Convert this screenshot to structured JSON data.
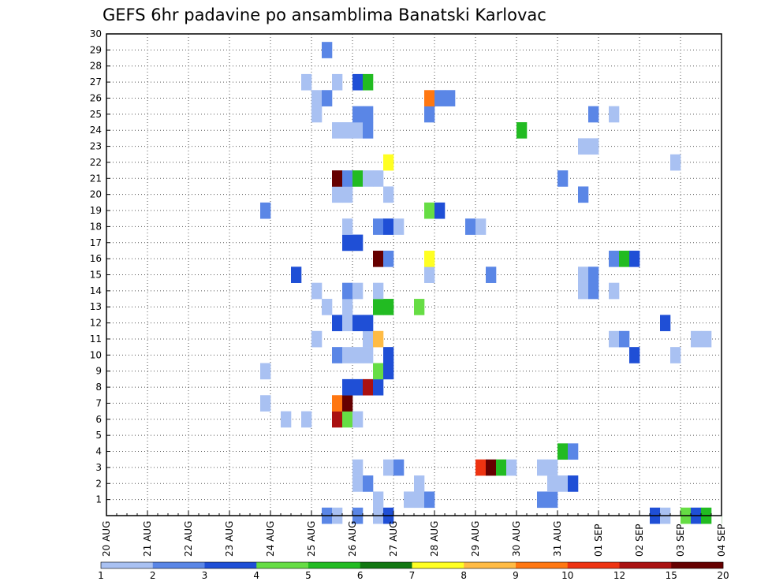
{
  "chart_data": {
    "type": "heatmap",
    "title": "GEFS 6hr padavine po ansamblima Banatski Karlovac",
    "xlabel": "",
    "ylabel": "",
    "x_ticks": [
      "20 AUG",
      "21 AUG",
      "22 AUG",
      "23 AUG",
      "24 AUG",
      "25 AUG",
      "26 AUG",
      "27 AUG",
      "28 AUG",
      "29 AUG",
      "30 AUG",
      "31 AUG",
      "01 SEP",
      "02 SEP",
      "03 SEP",
      "04 SEP"
    ],
    "x_range_days": [
      0,
      15
    ],
    "time_step_days": 0.25,
    "y_ticks": [
      "1",
      "2",
      "3",
      "4",
      "5",
      "6",
      "7",
      "8",
      "9",
      "10",
      "11",
      "12",
      "13",
      "14",
      "15",
      "16",
      "17",
      "18",
      "19",
      "20",
      "21",
      "22",
      "23",
      "24",
      "25",
      "26",
      "27",
      "28",
      "29",
      "30"
    ],
    "y_range": [
      0,
      30
    ],
    "grid": true,
    "colorbar": {
      "position": "bottom",
      "labels": [
        "1",
        "2",
        "3",
        "4",
        "5",
        "6",
        "7",
        "8",
        "9",
        "10",
        "12",
        "15",
        "20"
      ],
      "colors": [
        "#a9c1f2",
        "#5a86e6",
        "#1f4fd6",
        "#66dd44",
        "#22bb22",
        "#117711",
        "#ffff22",
        "#ffbb44",
        "#ff7711",
        "#ee3311",
        "#aa1111",
        "#660000"
      ]
    },
    "cells": [
      [
        0,
        5.25,
        2
      ],
      [
        0,
        5.5,
        1
      ],
      [
        0,
        6,
        2
      ],
      [
        0,
        6.5,
        1
      ],
      [
        0,
        6.75,
        3
      ],
      [
        0,
        13.25,
        3
      ],
      [
        0,
        13.5,
        1
      ],
      [
        0,
        14,
        4
      ],
      [
        0,
        14.25,
        3
      ],
      [
        0,
        14.5,
        5
      ],
      [
        0,
        15,
        6
      ],
      [
        1,
        6.5,
        1
      ],
      [
        1,
        7.25,
        1
      ],
      [
        1,
        7.5,
        1
      ],
      [
        1,
        7.75,
        2
      ],
      [
        1,
        10.5,
        2
      ],
      [
        1,
        10.75,
        2
      ],
      [
        1,
        15,
        2
      ],
      [
        2,
        6,
        1
      ],
      [
        2,
        6.25,
        2
      ],
      [
        2,
        7.5,
        1
      ],
      [
        2,
        10.75,
        1
      ],
      [
        2,
        11,
        1
      ],
      [
        2,
        11.25,
        3
      ],
      [
        2,
        15,
        9
      ],
      [
        3,
        6,
        1
      ],
      [
        3,
        6.75,
        1
      ],
      [
        3,
        7,
        2
      ],
      [
        3,
        9,
        10
      ],
      [
        3,
        9.25,
        12
      ],
      [
        3,
        9.5,
        5
      ],
      [
        3,
        9.75,
        1
      ],
      [
        3,
        10.5,
        1
      ],
      [
        3,
        10.75,
        1
      ],
      [
        4,
        11,
        5
      ],
      [
        4,
        11.25,
        2
      ],
      [
        6,
        4.25,
        1
      ],
      [
        6,
        4.75,
        1
      ],
      [
        6,
        5.5,
        11
      ],
      [
        6,
        5.75,
        4
      ],
      [
        6,
        6,
        1
      ],
      [
        7,
        3.75,
        1
      ],
      [
        7,
        5.5,
        9
      ],
      [
        7,
        5.75,
        12
      ],
      [
        8,
        5.75,
        3
      ],
      [
        8,
        6,
        3
      ],
      [
        8,
        6.25,
        11
      ],
      [
        8,
        6.5,
        3
      ],
      [
        9,
        3.75,
        1
      ],
      [
        9,
        6.5,
        4
      ],
      [
        9,
        6.75,
        3
      ],
      [
        10,
        5.5,
        2
      ],
      [
        10,
        5.75,
        1
      ],
      [
        10,
        6,
        1
      ],
      [
        10,
        6.25,
        1
      ],
      [
        10,
        6.75,
        3
      ],
      [
        10,
        12.75,
        3
      ],
      [
        10,
        13.75,
        1
      ],
      [
        11,
        5,
        1
      ],
      [
        11,
        6.25,
        1
      ],
      [
        11,
        6.5,
        8
      ],
      [
        11,
        12.25,
        1
      ],
      [
        11,
        12.5,
        2
      ],
      [
        11,
        14.25,
        1
      ],
      [
        11,
        14.5,
        1
      ],
      [
        12,
        5.5,
        3
      ],
      [
        12,
        5.75,
        1
      ],
      [
        12,
        6,
        3
      ],
      [
        12,
        6.25,
        3
      ],
      [
        12,
        13.5,
        3
      ],
      [
        13,
        5.25,
        1
      ],
      [
        13,
        5.75,
        1
      ],
      [
        13,
        6.5,
        5
      ],
      [
        13,
        6.75,
        5
      ],
      [
        13,
        7.5,
        4
      ],
      [
        14,
        5,
        1
      ],
      [
        14,
        5.75,
        2
      ],
      [
        14,
        6,
        1
      ],
      [
        14,
        6.5,
        1
      ],
      [
        14,
        11.5,
        1
      ],
      [
        14,
        11.75,
        2
      ],
      [
        14,
        12.25,
        1
      ],
      [
        15,
        4.5,
        3
      ],
      [
        15,
        7.75,
        1
      ],
      [
        15,
        9.25,
        2
      ],
      [
        15,
        11.5,
        1
      ],
      [
        15,
        11.75,
        2
      ],
      [
        16,
        6.5,
        12
      ],
      [
        16,
        6.75,
        2
      ],
      [
        16,
        7.75,
        7
      ],
      [
        16,
        12.25,
        2
      ],
      [
        16,
        12.5,
        5
      ],
      [
        16,
        12.75,
        3
      ],
      [
        17,
        5.75,
        3
      ],
      [
        17,
        6,
        3
      ],
      [
        18,
        5.75,
        1
      ],
      [
        18,
        6.5,
        2
      ],
      [
        18,
        6.75,
        3
      ],
      [
        18,
        7,
        1
      ],
      [
        18,
        8.75,
        2
      ],
      [
        18,
        9,
        1
      ],
      [
        19,
        3.75,
        2
      ],
      [
        19,
        7.75,
        4
      ],
      [
        19,
        8,
        3
      ],
      [
        20,
        5.5,
        1
      ],
      [
        20,
        5.75,
        1
      ],
      [
        20,
        6.75,
        1
      ],
      [
        20,
        11.5,
        2
      ],
      [
        21,
        5.5,
        12
      ],
      [
        21,
        5.75,
        2
      ],
      [
        21,
        6,
        5
      ],
      [
        21,
        6.25,
        1
      ],
      [
        21,
        6.5,
        1
      ],
      [
        21,
        11,
        2
      ],
      [
        22,
        6.75,
        7
      ],
      [
        22,
        13.75,
        1
      ],
      [
        23,
        11.5,
        1
      ],
      [
        23,
        11.75,
        1
      ],
      [
        23,
        15,
        3
      ],
      [
        24,
        5.5,
        1
      ],
      [
        24,
        5.75,
        1
      ],
      [
        24,
        6,
        1
      ],
      [
        24,
        6.25,
        2
      ],
      [
        24,
        10,
        5
      ],
      [
        25,
        5,
        1
      ],
      [
        25,
        6,
        2
      ],
      [
        25,
        6.25,
        2
      ],
      [
        25,
        7.75,
        2
      ],
      [
        25,
        11.75,
        2
      ],
      [
        25,
        12.25,
        1
      ],
      [
        26,
        5,
        1
      ],
      [
        26,
        5.25,
        2
      ],
      [
        26,
        7.75,
        9
      ],
      [
        26,
        8,
        2
      ],
      [
        26,
        8.25,
        2
      ],
      [
        27,
        4.75,
        1
      ],
      [
        27,
        5.5,
        1
      ],
      [
        27,
        6,
        3
      ],
      [
        27,
        6.25,
        5
      ],
      [
        29,
        5.25,
        2
      ]
    ]
  }
}
